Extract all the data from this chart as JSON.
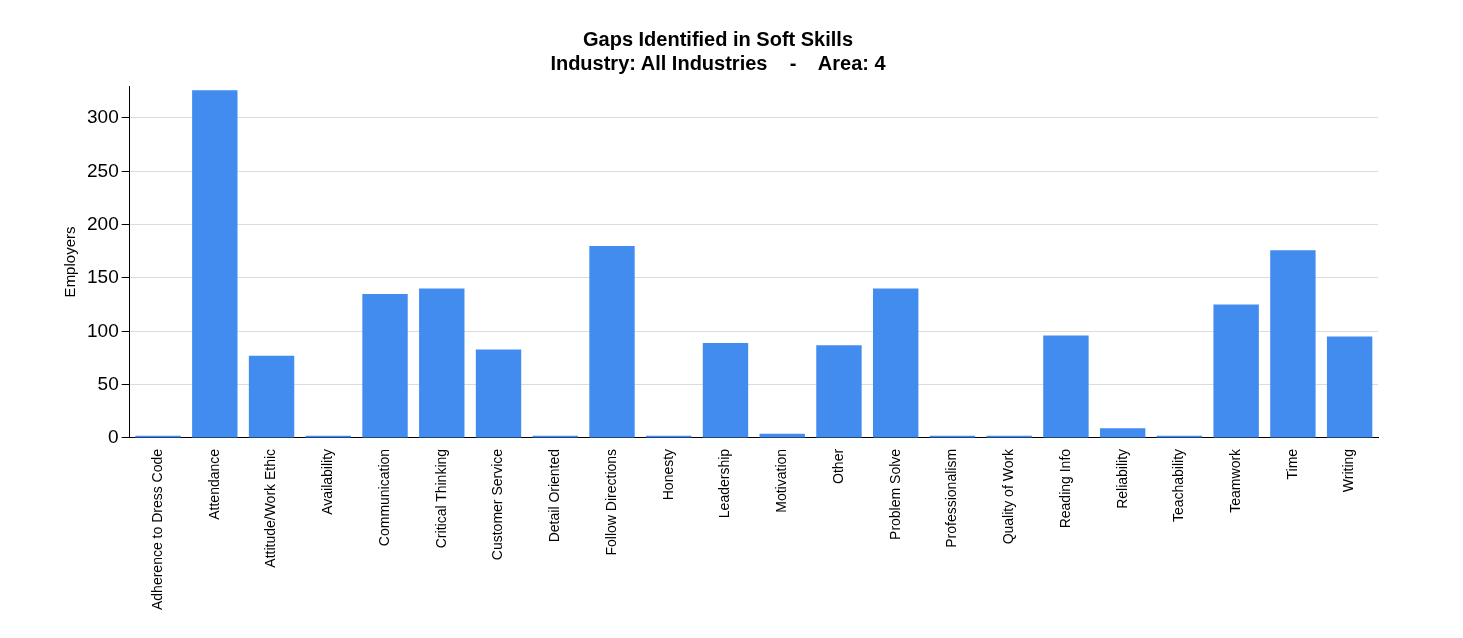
{
  "chart_data": {
    "type": "bar",
    "title": [
      "Gaps Identified in Soft Skills",
      "Industry: All Industries    -    Area: 4"
    ],
    "ylabel": "Employers",
    "categories": [
      "Adherence to Dress Code",
      "Attendance",
      "Attitude/Work Ethic",
      "Availability",
      "Communication",
      "Critical Thinking",
      "Customer Service",
      "Detail Oriented",
      "Follow Directions",
      "Honesty",
      "Leadership",
      "Motivation",
      "Other",
      "Problem Solve",
      "Professionalism",
      "Quality of Work",
      "Reading Info",
      "Reliability",
      "Teachability",
      "Teamwork",
      "Time",
      "Writing"
    ],
    "values": [
      2,
      326,
      77,
      2,
      135,
      140,
      83,
      2,
      180,
      2,
      89,
      4,
      87,
      140,
      2,
      2,
      96,
      9,
      2,
      125,
      176,
      95
    ],
    "color": "#428bef",
    "ylim": [
      0,
      330
    ],
    "yticks": [
      0,
      50,
      100,
      150,
      200,
      250,
      300
    ],
    "grid": "y",
    "legend": false
  }
}
